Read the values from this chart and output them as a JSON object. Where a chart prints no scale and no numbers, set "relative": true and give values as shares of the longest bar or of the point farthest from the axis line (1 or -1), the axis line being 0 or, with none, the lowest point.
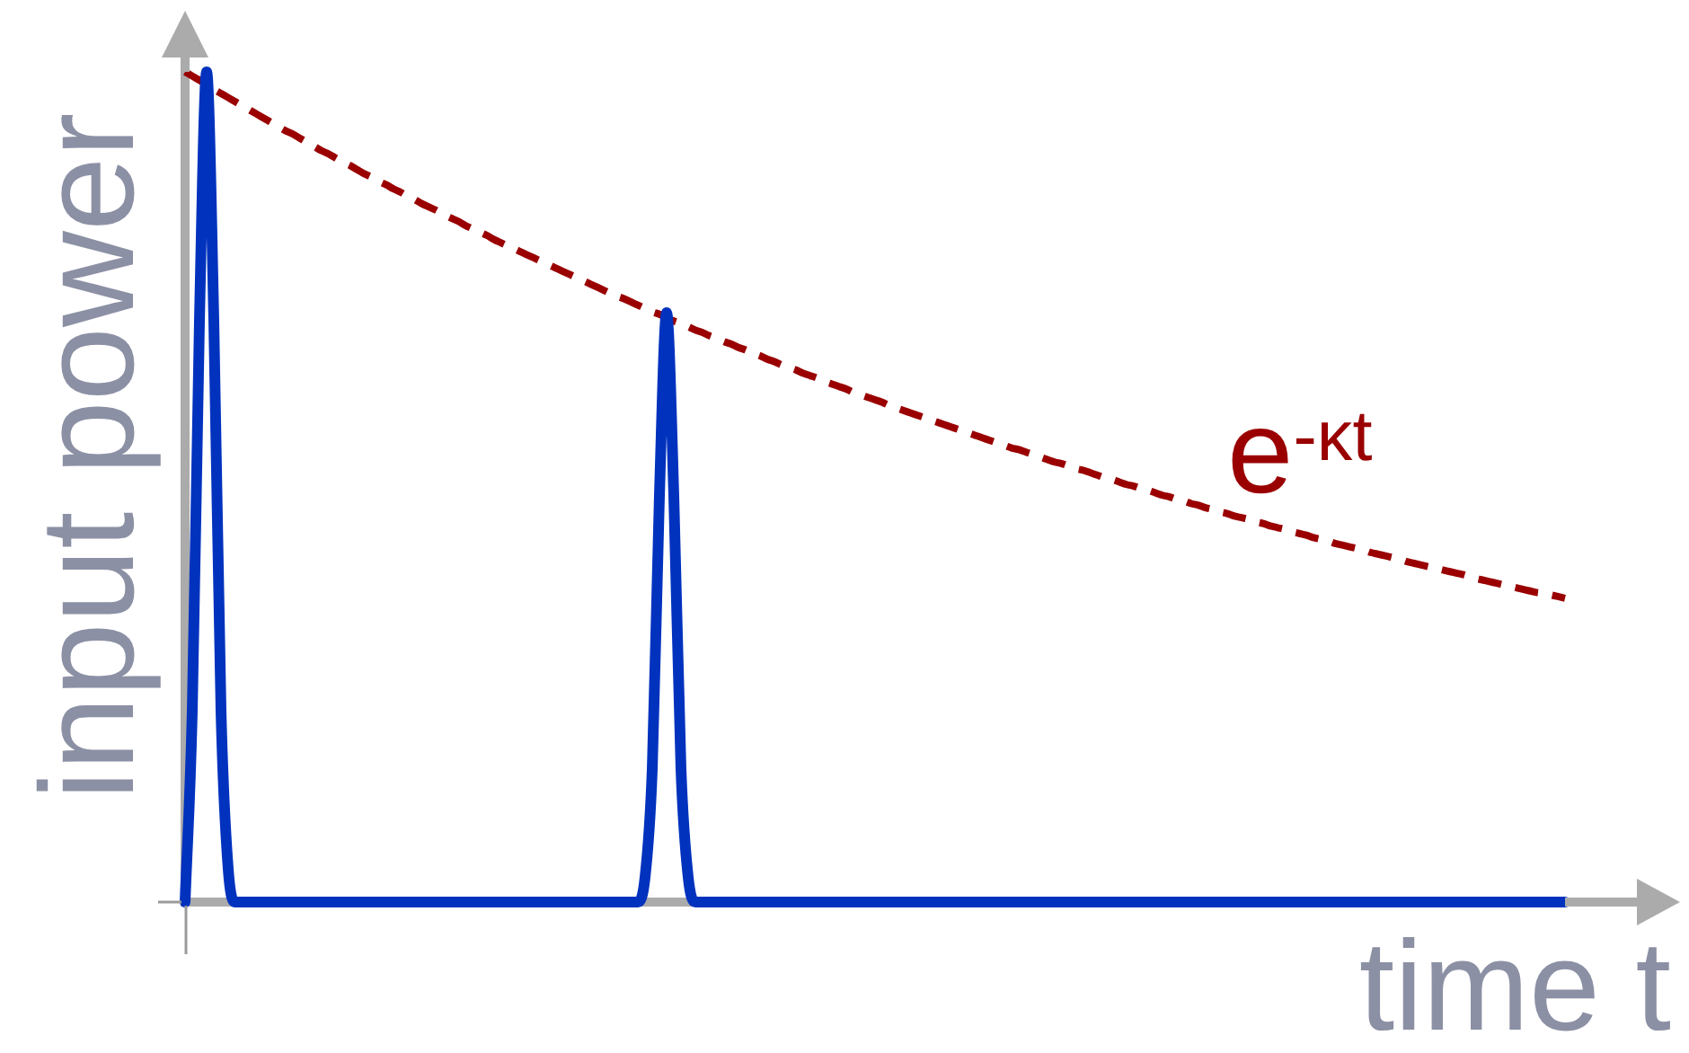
{
  "chart_data": {
    "type": "line",
    "relative": true,
    "xlabel": "time t",
    "ylabel": "input power",
    "categories": [
      null,
      null,
      null,
      null,
      null,
      null,
      null,
      null,
      null,
      null,
      null,
      null,
      null,
      null,
      null,
      null,
      null,
      null,
      null,
      null,
      null,
      null,
      null,
      null,
      null,
      null,
      null,
      null,
      null,
      null,
      null,
      null,
      null,
      null,
      null,
      null,
      null,
      null,
      null,
      null,
      null,
      null,
      null,
      null,
      null,
      null,
      null,
      null,
      null,
      null,
      null,
      null,
      null,
      null,
      null,
      null,
      null,
      null,
      null,
      null,
      null,
      null,
      null,
      null,
      null,
      null,
      null,
      null,
      null,
      null,
      null,
      null,
      null,
      null,
      null,
      null,
      null,
      null,
      null,
      null,
      null,
      null,
      null,
      null,
      null,
      null,
      null,
      null,
      null,
      null,
      null,
      null,
      null,
      null,
      null,
      null,
      null,
      null,
      null,
      null,
      null,
      null,
      null,
      null,
      null,
      null,
      null,
      null,
      null,
      null,
      null,
      null,
      null,
      null,
      null,
      null,
      null,
      null,
      null,
      null,
      null,
      null,
      null,
      null,
      null,
      null,
      null,
      null,
      null,
      null,
      null,
      null,
      null,
      null,
      null,
      null,
      null,
      null,
      null,
      null,
      null,
      null,
      null,
      null,
      null,
      null,
      null,
      null,
      null,
      null,
      null,
      null,
      null,
      null,
      null,
      null,
      null,
      null,
      null,
      null,
      null,
      null,
      null,
      null,
      null,
      null,
      null,
      null,
      null,
      null,
      null,
      null,
      null,
      null,
      null,
      null,
      null,
      null,
      null,
      null,
      null,
      null,
      null,
      null,
      null,
      null,
      null,
      null,
      null,
      null,
      null,
      null,
      null
    ],
    "series": [
      {
        "color": "#0032be",
        "values": [
          0,
          0.23,
          0.7,
          1,
          0.7,
          0.23,
          0.04,
          0,
          0,
          0,
          0,
          0,
          0,
          0,
          0,
          0,
          0,
          0,
          0,
          0,
          0,
          0,
          0,
          0,
          0,
          0,
          0,
          0,
          0,
          0,
          0,
          0,
          0,
          0,
          0,
          0,
          0,
          0,
          0,
          0,
          0,
          0,
          0,
          0,
          0,
          0,
          0,
          0,
          0,
          0,
          0,
          0,
          0,
          0,
          0,
          0,
          0,
          0,
          0,
          0,
          0,
          0,
          0,
          0,
          0.03,
          0.16,
          0.49,
          0.71,
          0.49,
          0.16,
          0.03,
          0,
          0,
          0,
          0,
          0,
          0,
          0,
          0,
          0,
          0,
          0,
          0,
          0,
          0,
          0,
          0,
          0,
          0,
          0,
          0,
          0,
          0,
          0,
          0,
          0,
          0,
          0,
          0,
          0,
          0,
          0,
          0,
          0,
          0,
          0,
          0,
          0,
          0,
          0,
          0,
          0,
          0,
          0,
          0,
          0,
          0,
          0,
          0,
          0,
          0,
          0,
          0,
          0,
          0,
          0,
          0,
          0,
          0,
          0,
          0,
          0,
          0,
          0,
          0,
          0,
          0,
          0,
          0,
          0,
          0,
          0,
          0,
          0,
          0,
          0,
          0,
          0,
          0,
          0,
          0,
          0,
          0,
          0,
          0,
          0,
          0,
          0,
          0,
          0,
          0,
          0,
          0,
          0,
          0,
          0,
          0,
          0,
          0,
          0,
          0,
          0,
          0,
          0,
          0,
          0,
          0,
          0,
          0,
          0,
          0,
          0,
          0,
          0,
          0,
          0,
          0,
          0,
          0,
          0,
          0,
          0,
          0
        ]
      },
      {
        "name": "e$^{-κt}$",
        "color": "#9a0000",
        "line_style": "dashed",
        "values": [
          1,
          0.995,
          0.99,
          0.985,
          0.979,
          0.974,
          0.969,
          0.964,
          0.959,
          0.954,
          0.949,
          0.944,
          0.939,
          0.934,
          0.929,
          0.925,
          0.92,
          0.915,
          0.91,
          0.905,
          0.901,
          0.896,
          0.891,
          0.887,
          0.882,
          0.877,
          0.873,
          0.868,
          0.864,
          0.859,
          0.855,
          0.85,
          0.846,
          0.841,
          0.837,
          0.833,
          0.828,
          0.824,
          0.82,
          0.815,
          0.811,
          0.807,
          0.803,
          0.798,
          0.794,
          0.79,
          0.786,
          0.782,
          0.778,
          0.774,
          0.77,
          0.766,
          0.762,
          0.758,
          0.754,
          0.75,
          0.746,
          0.742,
          0.738,
          0.734,
          0.73,
          0.727,
          0.723,
          0.719,
          0.715,
          0.711,
          0.708,
          0.704,
          0.7,
          0.697,
          0.693,
          0.689,
          0.686,
          0.682,
          0.679,
          0.675,
          0.672,
          0.668,
          0.665,
          0.661,
          0.658,
          0.654,
          0.651,
          0.647,
          0.644,
          0.641,
          0.637,
          0.634,
          0.631,
          0.627,
          0.624,
          0.621,
          0.618,
          0.614,
          0.611,
          0.608,
          0.605,
          0.602,
          0.598,
          0.595,
          0.592,
          0.589,
          0.586,
          0.583,
          0.58,
          0.577,
          0.574,
          0.571,
          0.568,
          0.565,
          0.562,
          0.559,
          0.556,
          0.553,
          0.55,
          0.547,
          0.545,
          0.542,
          0.539,
          0.536,
          0.533,
          0.53,
          0.528,
          0.525,
          0.522,
          0.52,
          0.517,
          0.514,
          0.511,
          0.509,
          0.506,
          0.503,
          0.501,
          0.498,
          0.496,
          0.493,
          0.49,
          0.488,
          0.485,
          0.483,
          0.48,
          0.478,
          0.475,
          0.473,
          0.47,
          0.468,
          0.465,
          0.463,
          0.461,
          0.458,
          0.456,
          0.453,
          0.451,
          0.449,
          0.446,
          0.444,
          0.442,
          0.439,
          0.437,
          0.435,
          0.432,
          0.43,
          0.428,
          0.426,
          0.424,
          0.421,
          0.419,
          0.417,
          0.415,
          0.413,
          0.41,
          0.408,
          0.406,
          0.404,
          0.402,
          0.4,
          0.398,
          0.396,
          0.394,
          0.391,
          0.389,
          0.387,
          0.385,
          0.383,
          0.381,
          0.379,
          0.377,
          0.375,
          0.373,
          0.372,
          0.37,
          0.368,
          0.366
        ]
      }
    ],
    "line_style": "solid",
    "marker": "none",
    "legend": false,
    "tick_labels": false
  }
}
